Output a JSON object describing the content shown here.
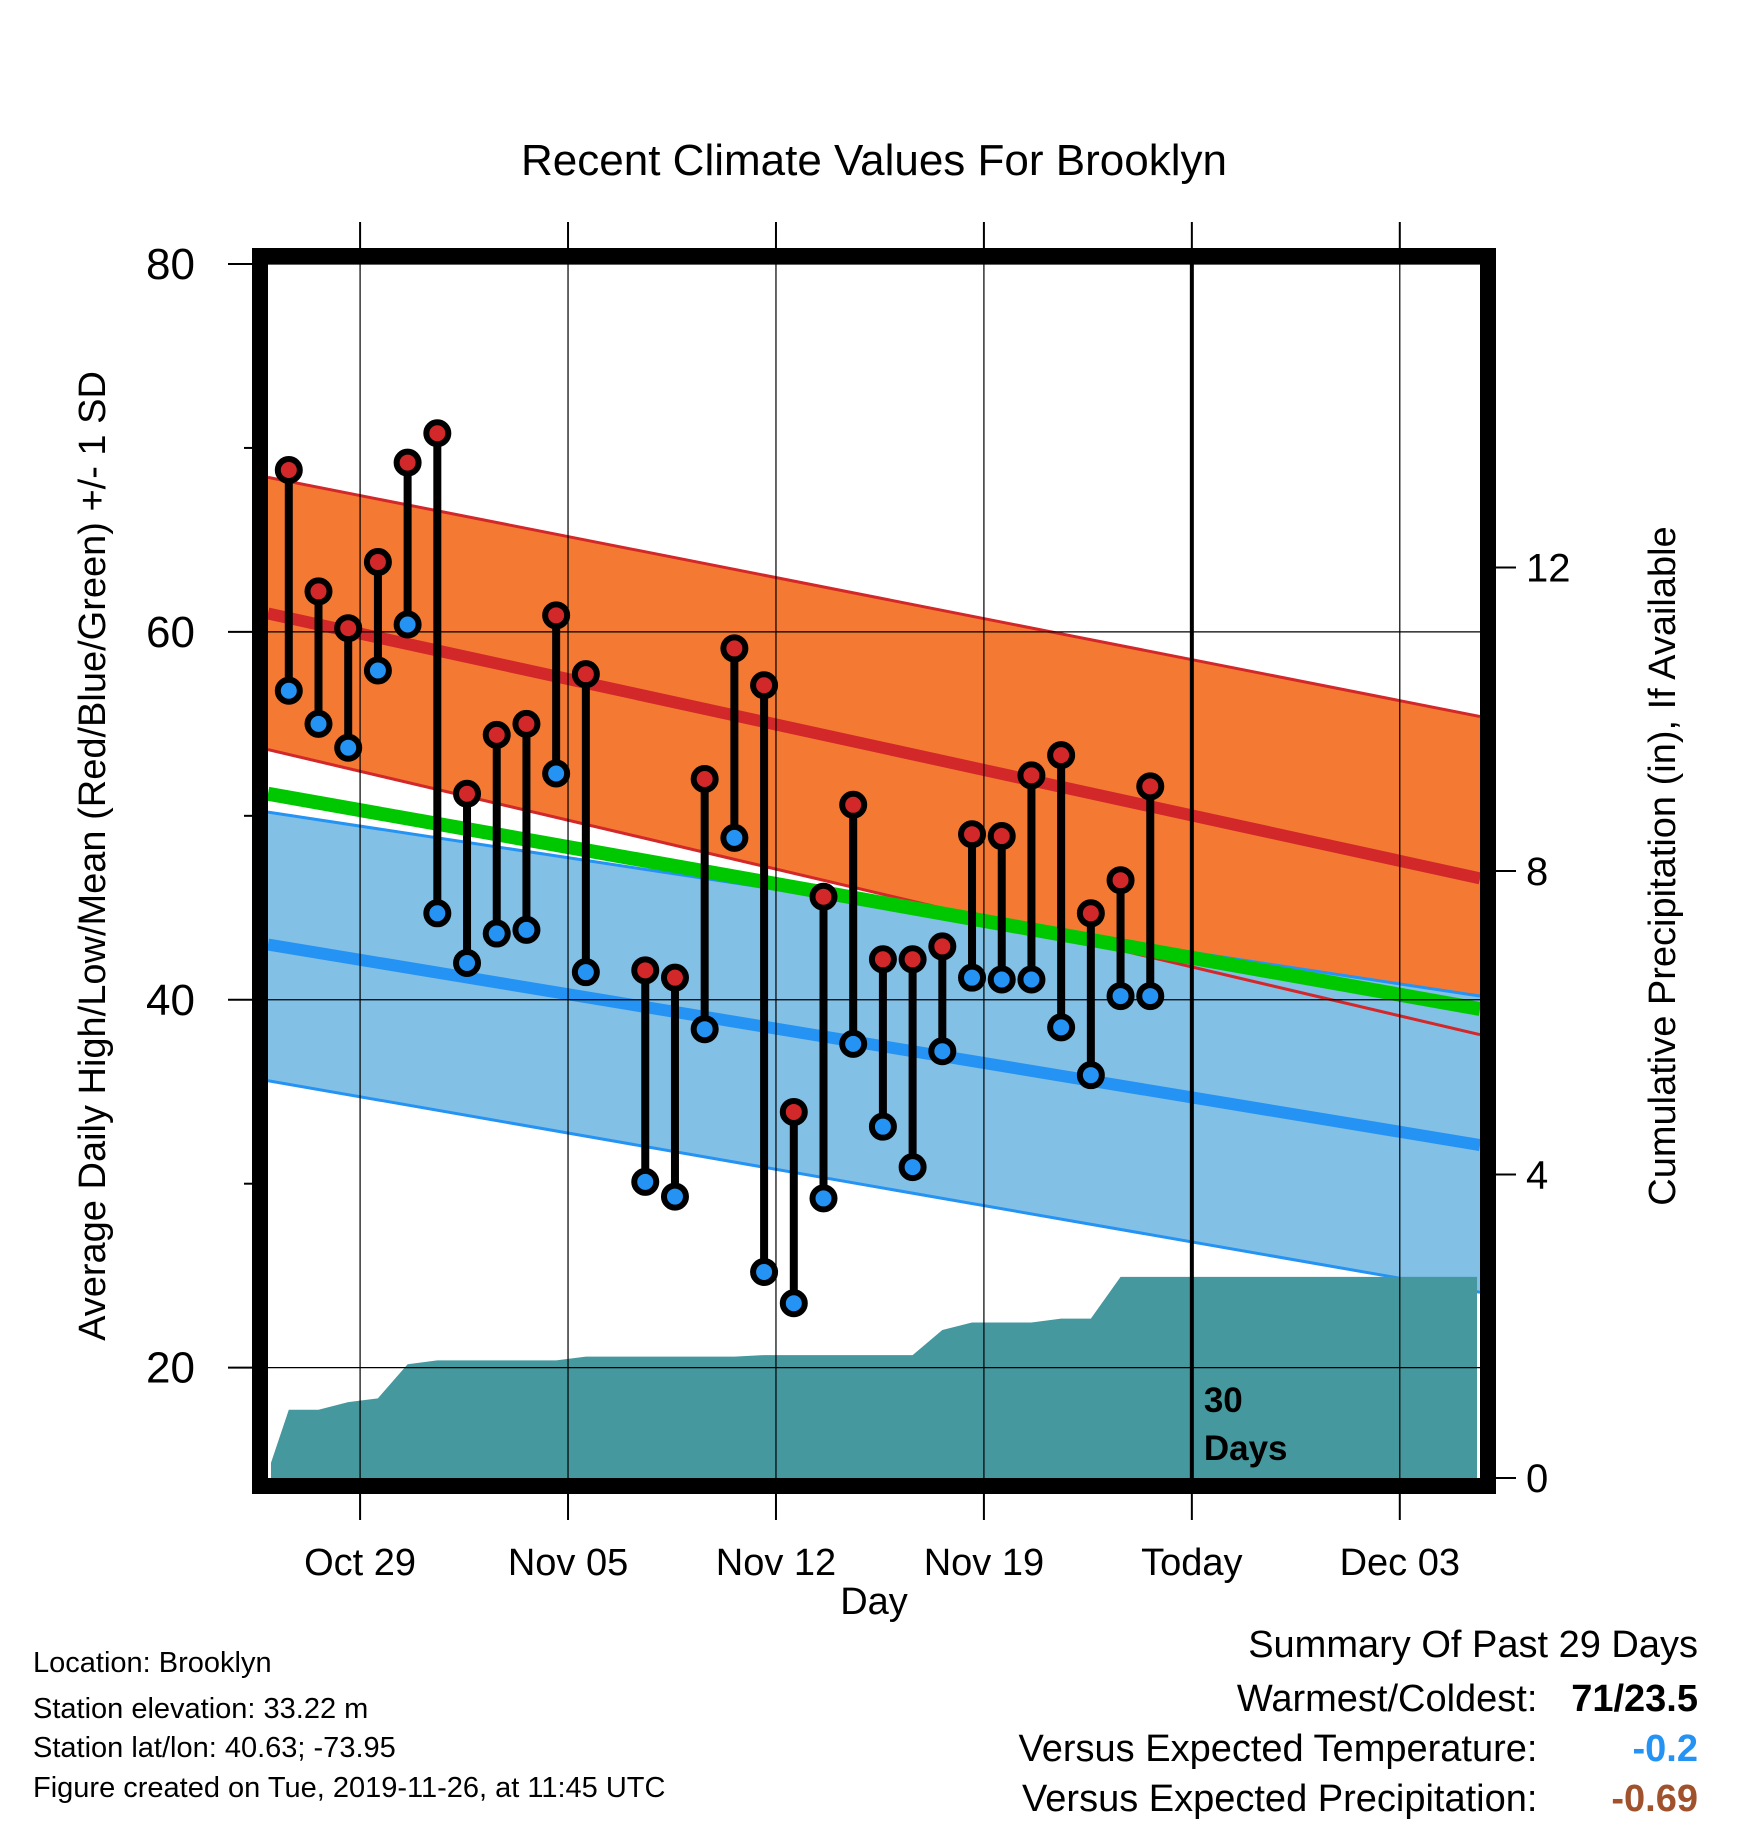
{
  "chart_data": {
    "type": "line",
    "title": "Recent Climate Values For Brooklyn",
    "xlabel": "Day",
    "ylabel": "Average Daily High/Low/Mean (Red/Blue/Green) +/- 1 SD",
    "y2label": "Cumulative Precipitation (in), If Available",
    "x_tick_labels": [
      "Oct 29",
      "Nov 05",
      "Nov 12",
      "Nov 19",
      "Today",
      "Dec 03"
    ],
    "x_tick_days": [
      3,
      10,
      17,
      24,
      31,
      38
    ],
    "xlim": [
      -0.1,
      40.7
    ],
    "ylim": [
      14,
      80
    ],
    "y_ticks": [
      20,
      40,
      60,
      80
    ],
    "y_minor_ticks": [
      30,
      50,
      70
    ],
    "y2lim": [
      0,
      16
    ],
    "y2_ticks": [
      0,
      4,
      8,
      12
    ],
    "today_day": 31,
    "today_label": "30\nDays",
    "day_index": [
      0.6,
      1.6,
      2.6,
      3.6,
      4.6,
      5.6,
      6.6,
      7.6,
      8.6,
      9.6,
      10.6,
      12.6,
      13.6,
      14.6,
      15.6,
      16.6,
      17.6,
      18.6,
      19.6,
      20.6,
      21.6,
      22.6,
      23.6,
      24.6,
      25.6,
      26.6,
      27.6,
      28.6,
      29.6
    ],
    "observed_high": [
      68.8,
      62.2,
      60.2,
      63.8,
      69.2,
      70.8,
      51.2,
      54.4,
      55.0,
      60.9,
      57.7,
      41.6,
      41.2,
      52.0,
      59.1,
      57.1,
      33.9,
      45.6,
      50.6,
      42.2,
      42.2,
      42.9,
      49.0,
      48.9,
      52.2,
      53.3,
      44.7,
      46.5,
      51.6
    ],
    "observed_low": [
      56.8,
      55.0,
      53.7,
      57.9,
      60.4,
      44.7,
      42.0,
      43.6,
      43.8,
      52.3,
      41.5,
      30.1,
      29.3,
      38.4,
      48.8,
      25.2,
      23.5,
      29.2,
      37.6,
      33.1,
      30.9,
      37.2,
      41.2,
      41.1,
      41.1,
      38.5,
      35.9,
      40.2,
      40.2
    ],
    "normal_high": {
      "start": 61.0,
      "end": 46.6,
      "upper_start": 68.4,
      "upper_end": 55.4,
      "lower_start": 53.6,
      "lower_end": 38.1
    },
    "normal_low": {
      "start": 43.0,
      "end": 32.1,
      "upper_start": 50.2,
      "upper_end": 40.2,
      "lower_start": 35.6,
      "lower_end": 24.1
    },
    "normal_mean": {
      "start": 51.2,
      "end": 39.5
    },
    "precip_cumulative": {
      "day": [
        0.0,
        0.6,
        1.6,
        2.6,
        3.6,
        4.6,
        5.6,
        6.6,
        7.6,
        8.6,
        9.6,
        10.6,
        12.6,
        13.6,
        14.6,
        15.6,
        16.6,
        17.6,
        18.6,
        19.6,
        20.6,
        21.6,
        22.6,
        23.6,
        24.6,
        25.6,
        26.6,
        27.6,
        28.6,
        29.6,
        40.6
      ],
      "value": [
        0.2,
        0.9,
        0.9,
        1.0,
        1.05,
        1.5,
        1.55,
        1.55,
        1.55,
        1.55,
        1.55,
        1.6,
        1.6,
        1.6,
        1.6,
        1.6,
        1.62,
        1.62,
        1.62,
        1.62,
        1.62,
        1.62,
        1.95,
        2.05,
        2.05,
        2.05,
        2.1,
        2.1,
        2.65,
        2.65,
        2.65
      ]
    },
    "colors": {
      "high_band": "#F47A33",
      "high_line": "#D2282A",
      "low_band": "#82C0E6",
      "low_line": "#2493F3",
      "mean_line": "#00C800",
      "precip": "#45989E",
      "high_marker": "#D2282A",
      "low_marker": "#2493F3"
    }
  },
  "info": {
    "location": "Location: Brooklyn",
    "elevation": "Station elevation: 33.22 m",
    "latlon": "Station lat/lon: 40.63; -73.95",
    "created": "Figure created on Tue, 2019-11-26, at 11:45 UTC"
  },
  "summary": {
    "heading": "Summary Of Past 29 Days",
    "warmest_label": "Warmest/Coldest:",
    "warmest_value": "71/23.5",
    "temp_label": "Versus Expected Temperature:",
    "temp_value": "-0.2",
    "temp_color": "#2493F3",
    "precip_label": "Versus Expected Precipitation:",
    "precip_value": "-0.69",
    "precip_color": "#A0522D"
  }
}
